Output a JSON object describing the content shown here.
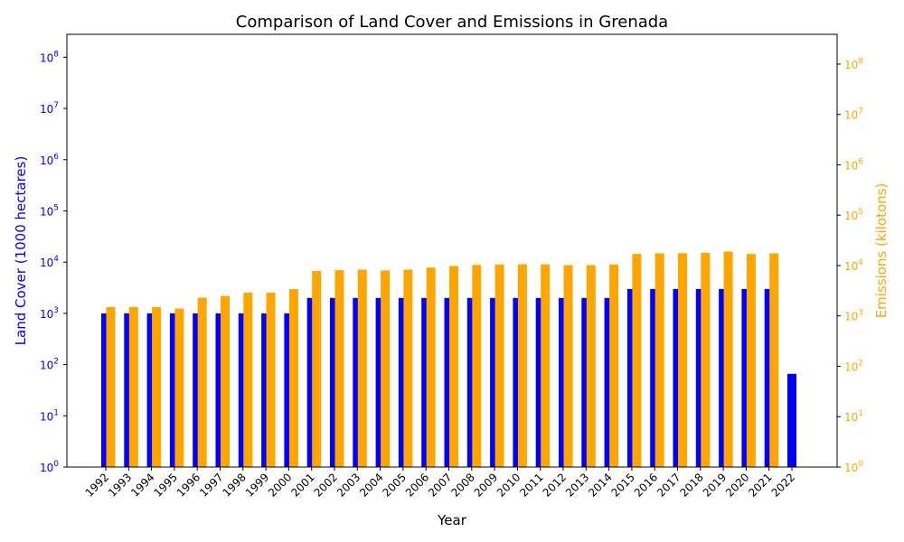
{
  "chart_data": {
    "type": "bar",
    "title": "Comparison of Land Cover and Emissions in Grenada",
    "xlabel": "Year",
    "categories": [
      "1992",
      "1993",
      "1994",
      "1995",
      "1996",
      "1997",
      "1998",
      "1999",
      "2000",
      "2001",
      "2002",
      "2003",
      "2004",
      "2005",
      "2006",
      "2007",
      "2008",
      "2009",
      "2010",
      "2011",
      "2012",
      "2013",
      "2014",
      "2015",
      "2016",
      "2017",
      "2018",
      "2019",
      "2020",
      "2021",
      "2022"
    ],
    "series": [
      {
        "axis": "left",
        "color": "#0000ff",
        "values": [
          1000,
          1000,
          1000,
          1000,
          1000,
          1000,
          1000,
          1000,
          1000,
          2000,
          2000,
          2000,
          2000,
          2000,
          2000,
          2000,
          2000,
          2000,
          2000,
          2000,
          2000,
          2000,
          2000,
          3000,
          3000,
          3000,
          3000,
          3000,
          3000,
          3000,
          66
        ]
      },
      {
        "axis": "right",
        "color": "#ffa500",
        "values": [
          1500,
          1500,
          1500,
          1400,
          2300,
          2500,
          2900,
          2900,
          3400,
          7800,
          8100,
          8300,
          8000,
          8300,
          9100,
          9800,
          10300,
          10500,
          10600,
          10600,
          10200,
          10200,
          10500,
          17000,
          17500,
          17600,
          18000,
          19000,
          17000,
          17500,
          null
        ]
      }
    ],
    "y_left": {
      "label": "Land Cover (1000 hectares)",
      "scale": "log",
      "ylim": [
        1,
        280000000
      ],
      "ticks": [
        1,
        10,
        100,
        1000,
        10000,
        100000,
        1000000,
        10000000,
        100000000
      ],
      "tick_labels": [
        [
          "10",
          "0"
        ],
        [
          "10",
          "1"
        ],
        [
          "10",
          "2"
        ],
        [
          "10",
          "3"
        ],
        [
          "10",
          "4"
        ],
        [
          "10",
          "5"
        ],
        [
          "10",
          "6"
        ],
        [
          "10",
          "7"
        ],
        [
          "10",
          "8"
        ]
      ],
      "color": "#0000ff"
    },
    "y_right": {
      "label": "Emissions (kilotons)",
      "scale": "log",
      "ylim": [
        1,
        390000000
      ],
      "ticks": [
        1,
        10,
        100,
        1000,
        10000,
        100000,
        1000000,
        10000000,
        100000000
      ],
      "tick_labels": [
        [
          "10",
          "0"
        ],
        [
          "10",
          "1"
        ],
        [
          "10",
          "2"
        ],
        [
          "10",
          "3"
        ],
        [
          "10",
          "4"
        ],
        [
          "10",
          "5"
        ],
        [
          "10",
          "6"
        ],
        [
          "10",
          "7"
        ],
        [
          "10",
          "8"
        ]
      ],
      "color": "#ffa500"
    },
    "grid": false,
    "legend": "none"
  }
}
